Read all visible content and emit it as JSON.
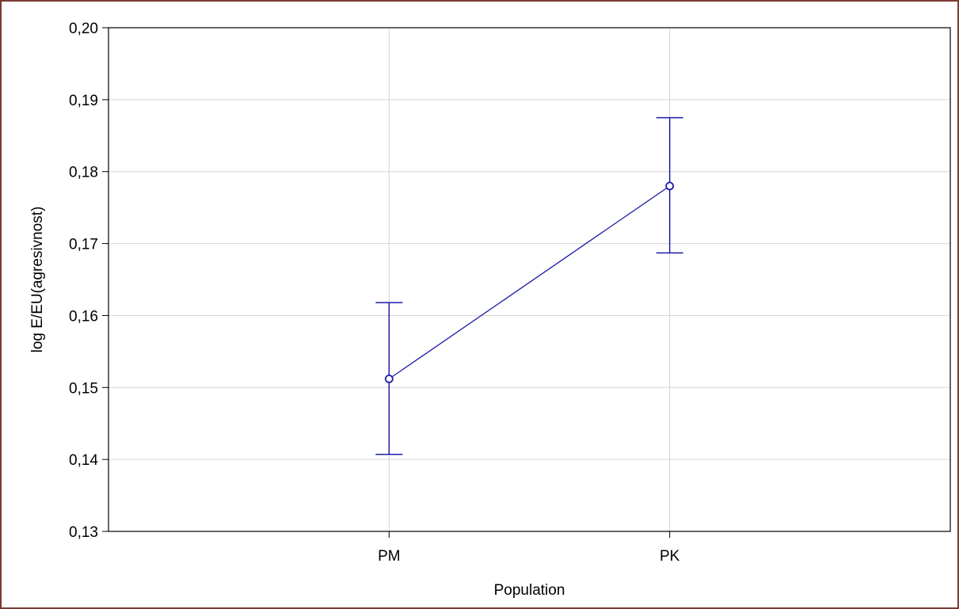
{
  "chart_data": {
    "type": "line",
    "title": "",
    "xlabel": "Population",
    "ylabel": "log E/EU(agresivnost)",
    "categories": [
      "PM",
      "PK"
    ],
    "series": [
      {
        "values": [
          0.1512,
          0.178
        ],
        "error_low": [
          0.1407,
          0.1687
        ],
        "error_high": [
          0.1618,
          0.1875
        ]
      }
    ],
    "ylim": [
      0.13,
      0.2
    ],
    "yticks": [
      0.2,
      0.19,
      0.18,
      0.17,
      0.16,
      0.15,
      0.14,
      0.13
    ],
    "ytick_labels": [
      "0,20",
      "0,19",
      "0,18",
      "0,17",
      "0,16",
      "0,15",
      "0,14",
      "0,13"
    ],
    "grid": true,
    "colors": {
      "series": "#1c1ca8",
      "grid": "#d4d4d4",
      "frame": "#7a3b34"
    }
  }
}
